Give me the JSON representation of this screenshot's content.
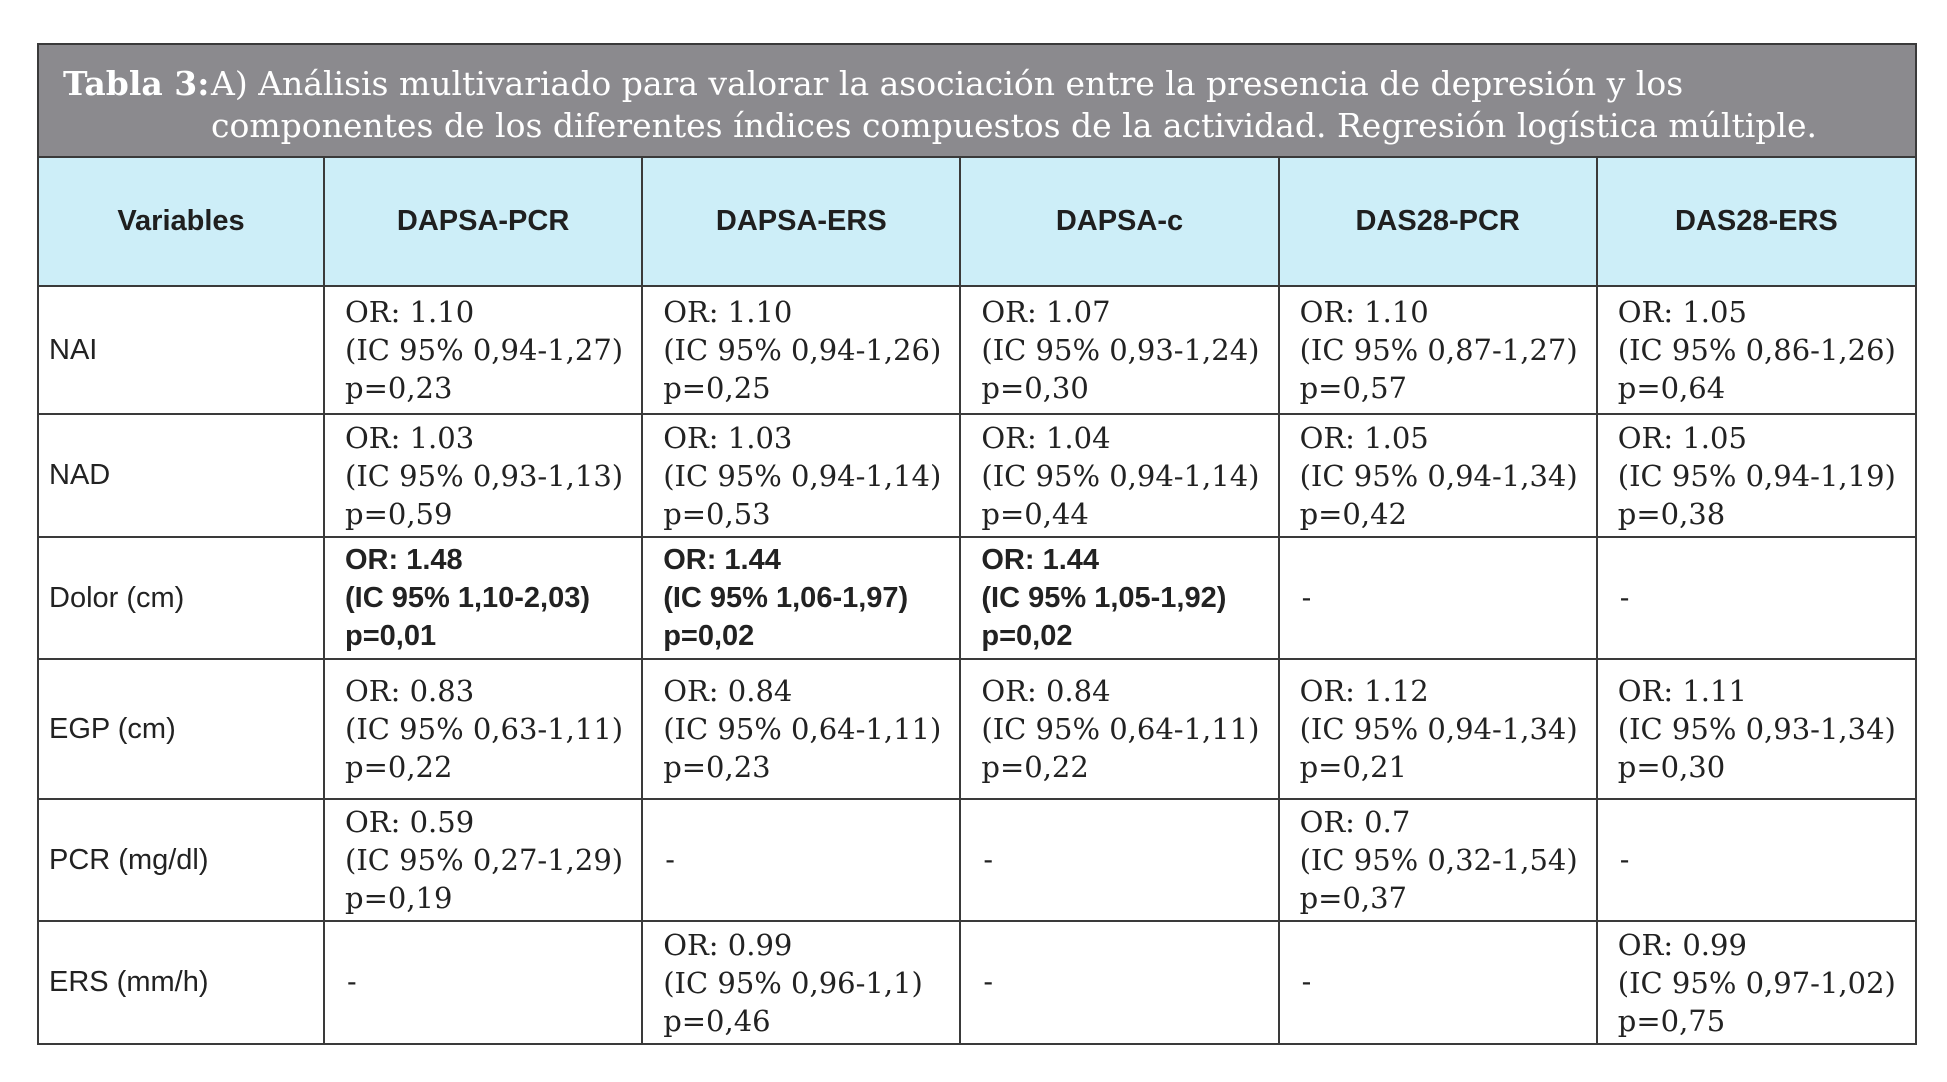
{
  "caption": {
    "label": "Tabla 3:",
    "text": "A) Análisis multivariado para valorar la asociación entre la presencia de depresión y los componentes de los diferentes índices compuestos de la actividad. Regresión logística múltiple."
  },
  "colors": {
    "caption_bg": "#8b8a8e",
    "header_bg": "#cdeef8",
    "border": "#3a3a3a"
  },
  "table": {
    "headers": [
      "Variables",
      "DAPSA-PCR",
      "DAPSA-ERS",
      "DAPSA-c",
      "DAS28-PCR",
      "DAS28-ERS"
    ],
    "rows": [
      {
        "variable": "NAI",
        "cells": [
          {
            "or": "OR: 1.10",
            "ic": "(IC 95% 0,94-1,27)",
            "p": "p=0,23"
          },
          {
            "or": "OR: 1.10",
            "ic": "(IC 95% 0,94-1,26)",
            "p": "p=0,25"
          },
          {
            "or": "OR: 1.07",
            "ic": "(IC 95% 0,93-1,24)",
            "p": "p=0,30"
          },
          {
            "or": "OR: 1.10",
            "ic": "(IC 95% 0,87-1,27)",
            "p": "p=0,57"
          },
          {
            "or": "OR: 1.05",
            "ic": "(IC 95% 0,86-1,26)",
            "p": "p=0,64"
          }
        ]
      },
      {
        "variable": "NAD",
        "cells": [
          {
            "or": "OR: 1.03",
            "ic": "(IC 95% 0,93-1,13)",
            "p": "p=0,59"
          },
          {
            "or": "OR: 1.03",
            "ic": "(IC 95% 0,94-1,14)",
            "p": "p=0,53"
          },
          {
            "or": "OR: 1.04",
            "ic": "(IC 95% 0,94-1,14)",
            "p": "p=0,44"
          },
          {
            "or": "OR: 1.05",
            "ic": "(IC 95% 0,94-1,34)",
            "p": "p=0,42"
          },
          {
            "or": "OR: 1.05",
            "ic": "(IC 95% 0,94-1,19)",
            "p": "p=0,38"
          }
        ]
      },
      {
        "variable": "Dolor (cm)",
        "cells": [
          {
            "or": "OR: 1.48",
            "ic": "(IC 95% 1,10-2,03)",
            "p": "p=0,01",
            "bold": true
          },
          {
            "or": "OR: 1.44",
            "ic": "(IC 95% 1,06-1,97)",
            "p": "p=0,02",
            "bold": true
          },
          {
            "or": "OR: 1.44",
            "ic": "(IC 95% 1,05-1,92)",
            "p": "p=0,02",
            "bold": true
          },
          {
            "dash": "-"
          },
          {
            "dash": "-"
          }
        ]
      },
      {
        "variable": "EGP (cm)",
        "cells": [
          {
            "or": "OR: 0.83",
            "ic": "(IC 95% 0,63-1,11)",
            "p": "p=0,22"
          },
          {
            "or": "OR: 0.84",
            "ic": "(IC 95% 0,64-1,11)",
            "p": "p=0,23"
          },
          {
            "or": "OR: 0.84",
            "ic": "(IC 95% 0,64-1,11)",
            "p": "p=0,22"
          },
          {
            "or": "OR: 1.12",
            "ic": "(IC 95% 0,94-1,34)",
            "p": "p=0,21"
          },
          {
            "or": "OR: 1.11",
            "ic": "(IC 95% 0,93-1,34)",
            "p": "p=0,30"
          }
        ]
      },
      {
        "variable": "PCR (mg/dl)",
        "cells": [
          {
            "or": "OR:  0.59",
            "ic": "(IC 95% 0,27-1,29)",
            "p": "p=0,19"
          },
          {
            "dash": "-"
          },
          {
            "dash": "-"
          },
          {
            "or": "OR: 0.7",
            "ic": "(IC 95% 0,32-1,54)",
            "p": "p=0,37"
          },
          {
            "dash": "-"
          }
        ]
      },
      {
        "variable": "ERS (mm/h)",
        "cells": [
          {
            "dash": "-"
          },
          {
            "or": "OR: 0.99",
            "ic": "(IC 95% 0,96-1,1)",
            "p": "p=0,46"
          },
          {
            "dash": "-"
          },
          {
            "dash": "-"
          },
          {
            "or": "OR: 0.99",
            "ic": "(IC 95% 0,97-1,02)",
            "p": "p=0,75"
          }
        ]
      }
    ]
  }
}
